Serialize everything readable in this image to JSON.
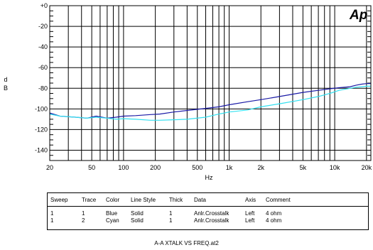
{
  "chart_data": {
    "type": "line",
    "title": "",
    "xlabel": "Hz",
    "ylabel": "d\nB",
    "xscale": "log",
    "xlim": [
      20,
      22000
    ],
    "ylim": [
      -150,
      0
    ],
    "xticks": [
      {
        "value": 20,
        "label": "20"
      },
      {
        "value": 50,
        "label": "50"
      },
      {
        "value": 100,
        "label": "100"
      },
      {
        "value": 200,
        "label": "200"
      },
      {
        "value": 500,
        "label": "500"
      },
      {
        "value": 1000,
        "label": "1k"
      },
      {
        "value": 2000,
        "label": "2k"
      },
      {
        "value": 5000,
        "label": "5k"
      },
      {
        "value": 10000,
        "label": "10k"
      },
      {
        "value": 20000,
        "label": "20k"
      }
    ],
    "yticks": [
      {
        "value": 0,
        "label": "+0"
      },
      {
        "value": -20,
        "label": "-20"
      },
      {
        "value": -40,
        "label": "-40"
      },
      {
        "value": -60,
        "label": "-60"
      },
      {
        "value": -80,
        "label": "-80"
      },
      {
        "value": -100,
        "label": "-100"
      },
      {
        "value": -120,
        "label": "-120"
      },
      {
        "value": -140,
        "label": "-140"
      }
    ],
    "grid": true,
    "series": [
      {
        "color": "#1a1aa6",
        "x": [
          20,
          25,
          35,
          45,
          55,
          70,
          85,
          100,
          130,
          180,
          220,
          300,
          400,
          600,
          800,
          1000,
          1500,
          2000,
          3000,
          5000,
          7000,
          9000,
          11000,
          14000,
          16000,
          18000,
          20000,
          22000
        ],
        "y": [
          -104,
          -107,
          -108,
          -109,
          -107,
          -109,
          -108,
          -107,
          -106.5,
          -105.5,
          -105,
          -103,
          -101.5,
          -99.5,
          -98,
          -96,
          -93,
          -91,
          -88,
          -84,
          -82,
          -80.5,
          -79.5,
          -78.5,
          -77,
          -76,
          -75.5,
          -75.5
        ]
      },
      {
        "color": "#33e0f0",
        "x": [
          20,
          25,
          35,
          45,
          55,
          70,
          85,
          100,
          130,
          180,
          220,
          300,
          400,
          600,
          800,
          1000,
          1500,
          2000,
          3000,
          5000,
          7000,
          9000,
          11000,
          14000,
          16000,
          18000,
          20000,
          22000
        ],
        "y": [
          -105,
          -107,
          -108,
          -109,
          -108,
          -109,
          -110,
          -109.5,
          -110,
          -111,
          -111,
          -110.5,
          -110,
          -108,
          -105,
          -103,
          -101,
          -98,
          -95,
          -91,
          -88,
          -85,
          -82,
          -80,
          -79,
          -78.5,
          -78,
          -78
        ]
      }
    ]
  },
  "legend": {
    "headers": {
      "sweep": "Sweep",
      "trace": "Trace",
      "color": "Color",
      "style": "Line Style",
      "thick": "Thick",
      "data": "Data",
      "axis": "Axis",
      "comment": "Comment"
    },
    "rows": [
      {
        "sweep": "1",
        "trace": "1",
        "color": "Blue",
        "style": "Solid",
        "thick": "1",
        "data": "Anlr.Crosstalk",
        "axis": "Left",
        "comment": "4 ohm"
      },
      {
        "sweep": "1",
        "trace": "2",
        "color": "Cyan",
        "style": "Solid",
        "thick": "1",
        "data": "Anlr.Crosstalk",
        "axis": "Left",
        "comment": "4 ohm"
      }
    ]
  },
  "logo": {
    "text": "Ap",
    "color": "#1f4fd6"
  },
  "caption": "A-A XTALK VS FREQ.at2"
}
